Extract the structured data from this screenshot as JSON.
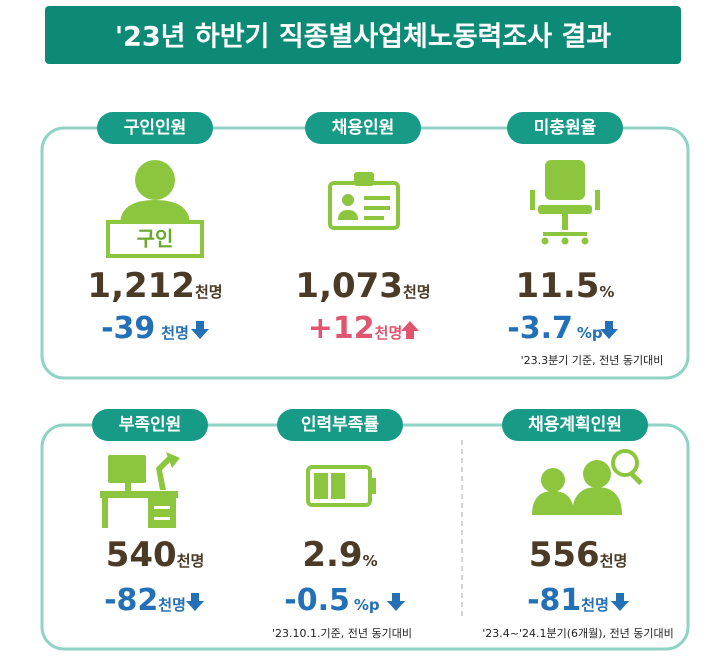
{
  "title": "'23년 하반기 직종별사업체노동력조사 결과",
  "top": {
    "cards": [
      {
        "label": "구인인원",
        "sign_text": "구인",
        "value": "1,212",
        "unit": "천명",
        "change": "-39",
        "change_unit": "천명"
      },
      {
        "label": "채용인원",
        "value": "1,073",
        "unit": "천명",
        "change": "+12",
        "change_unit": "천명"
      },
      {
        "label": "미충원율",
        "value": "11.5",
        "unit": "%",
        "change": "-3.7",
        "change_unit": "%p"
      }
    ],
    "note": "'23.3분기 기준, 전년 동기대비"
  },
  "bottom": {
    "cards": [
      {
        "label": "부족인원",
        "value": "540",
        "unit": "천명",
        "change": "-82",
        "change_unit": "천명"
      },
      {
        "label": "인력부족률",
        "value": "2.9",
        "unit": "%",
        "change": "-0.5",
        "change_unit": "%p",
        "note": "'23.10.1.기준, 전년 동기대비"
      },
      {
        "label": "채용계획인원",
        "value": "556",
        "unit": "천명",
        "change": "-81",
        "change_unit": "천명",
        "note": "'23.4~'24.1분기(6개월), 전년 동기대비"
      }
    ]
  }
}
